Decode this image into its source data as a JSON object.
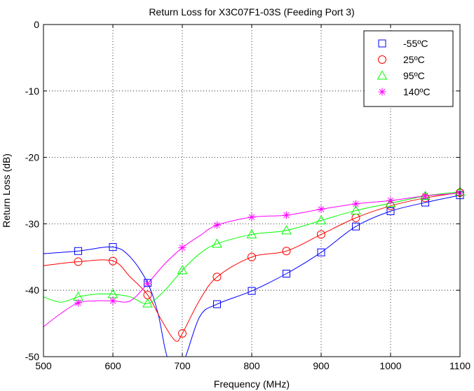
{
  "chart_data": {
    "type": "line",
    "title": "Return Loss for X3C07F1-03S (Feeding Port 3)",
    "xlabel": "Frequency (MHz)",
    "ylabel": "Return Loss (dB)",
    "xlim": [
      500,
      1100
    ],
    "ylim": [
      -50,
      0
    ],
    "xticks": [
      500,
      600,
      700,
      800,
      900,
      1000,
      1100
    ],
    "yticks": [
      0,
      -10,
      -20,
      -30,
      -40,
      -50
    ],
    "grid": "dotted",
    "legend_position": "top-right",
    "series": [
      {
        "name": "-55ºC",
        "color": "#0000ff",
        "marker": "square",
        "x": [
          500,
          550,
          600,
          625,
          650,
          665,
          680,
          700,
          725,
          750,
          800,
          850,
          900,
          950,
          1000,
          1050,
          1100
        ],
        "y": [
          -34.5,
          -34.1,
          -33.5,
          -35.0,
          -38.9,
          -43.5,
          -50.5,
          -51.0,
          -44.0,
          -42.1,
          -40.1,
          -37.5,
          -34.3,
          -30.4,
          -28.1,
          -26.8,
          -25.7
        ],
        "markers_x": [
          550,
          600,
          650,
          750,
          800,
          850,
          900,
          950,
          1000,
          1050,
          1100
        ],
        "markers_y": [
          -34.1,
          -33.5,
          -38.9,
          -42.1,
          -40.1,
          -37.5,
          -34.3,
          -30.4,
          -28.1,
          -26.8,
          -25.7
        ]
      },
      {
        "name": "25ºC",
        "color": "#ff0000",
        "marker": "circle",
        "x": [
          500,
          550,
          600,
          625,
          650,
          670,
          690,
          700,
          725,
          750,
          800,
          850,
          900,
          950,
          1000,
          1050,
          1100
        ],
        "y": [
          -36.3,
          -35.7,
          -35.6,
          -38.0,
          -40.7,
          -44.5,
          -47.6,
          -46.5,
          -41.5,
          -38.0,
          -35.0,
          -34.1,
          -31.6,
          -29.1,
          -27.3,
          -26.1,
          -25.3
        ],
        "markers_x": [
          550,
          600,
          650,
          700,
          750,
          800,
          850,
          900,
          950,
          1000,
          1050,
          1100
        ],
        "markers_y": [
          -35.7,
          -35.6,
          -40.7,
          -46.5,
          -38.0,
          -35.0,
          -34.1,
          -31.6,
          -29.1,
          -27.3,
          -26.1,
          -25.3
        ]
      },
      {
        "name": "95ºC",
        "color": "#00ff00",
        "marker": "triangle",
        "x": [
          500,
          525,
          550,
          575,
          600,
          625,
          650,
          675,
          700,
          725,
          750,
          800,
          850,
          900,
          950,
          1000,
          1050,
          1100
        ],
        "y": [
          -41.0,
          -41.8,
          -41.0,
          -40.6,
          -40.6,
          -41.0,
          -42.0,
          -40.0,
          -37.0,
          -34.5,
          -33.0,
          -31.6,
          -31.0,
          -29.5,
          -28.0,
          -26.9,
          -25.8,
          -25.2
        ],
        "markers_x": [
          550,
          600,
          650,
          700,
          750,
          800,
          850,
          900,
          950,
          1000,
          1050,
          1100
        ],
        "markers_y": [
          -41.0,
          -40.6,
          -42.0,
          -37.0,
          -33.0,
          -31.6,
          -31.0,
          -29.5,
          -28.0,
          -26.9,
          -25.8,
          -25.2
        ]
      },
      {
        "name": "140ºC",
        "color": "#ff00ff",
        "marker": "asterisk",
        "x": [
          500,
          525,
          550,
          575,
          600,
          625,
          650,
          675,
          700,
          725,
          750,
          800,
          850,
          900,
          950,
          1000,
          1050,
          1100
        ],
        "y": [
          -45.5,
          -43.5,
          -41.9,
          -41.6,
          -41.6,
          -41.6,
          -39.0,
          -36.0,
          -33.6,
          -31.8,
          -30.2,
          -29.0,
          -28.7,
          -27.8,
          -27.0,
          -26.5,
          -25.8,
          -25.4
        ],
        "markers_x": [
          550,
          600,
          650,
          700,
          750,
          800,
          850,
          900,
          950,
          1000,
          1050,
          1100
        ],
        "markers_y": [
          -41.9,
          -41.6,
          -39.0,
          -33.6,
          -30.2,
          -29.0,
          -28.7,
          -27.8,
          -27.0,
          -26.5,
          -25.8,
          -25.4
        ]
      }
    ]
  }
}
